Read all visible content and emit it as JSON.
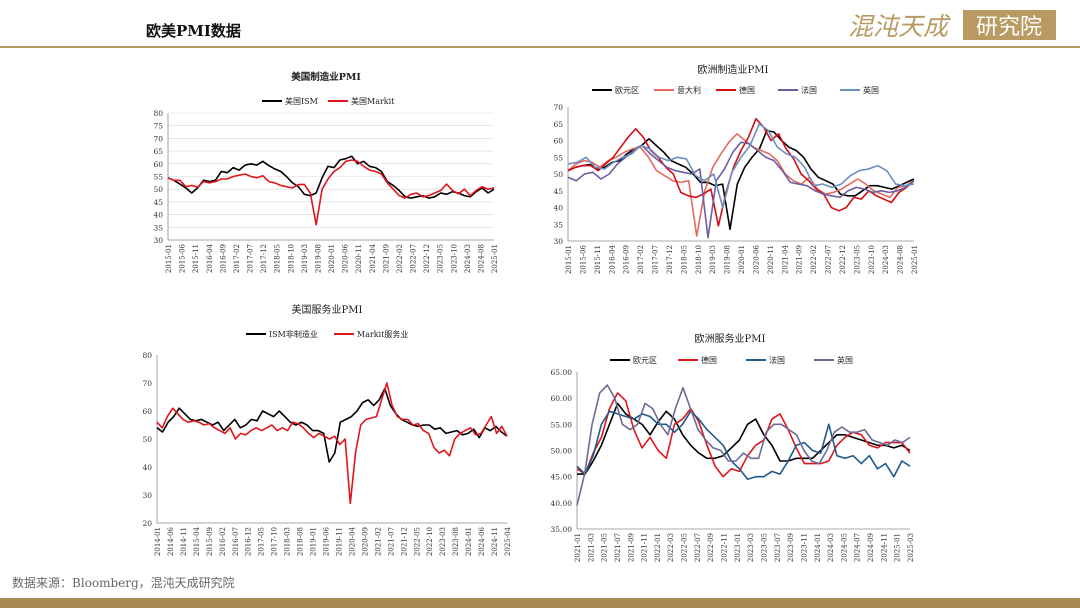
{
  "page": {
    "title": "欧美PMI数据",
    "source": "数据来源：Bloomberg，混沌天成研究院"
  },
  "logo": {
    "text1": "混沌天成",
    "text2": "研究院"
  },
  "colors": {
    "accent": "#b89a62",
    "footer": "#a98a52"
  },
  "chart_data": [
    {
      "type": "line",
      "title": "美国制造业PMI",
      "ylim": [
        30,
        80
      ],
      "yticks": [
        30,
        35,
        40,
        45,
        50,
        55,
        60,
        65,
        70,
        75,
        80
      ],
      "xticks": [
        "2015-01",
        "2015-06",
        "2015-11",
        "2016-04",
        "2016-09",
        "2017-02",
        "2017-07",
        "2017-12",
        "2018-05",
        "2018-10",
        "2019-03",
        "2019-08",
        "2020-01",
        "2020-06",
        "2020-11",
        "2021-04",
        "2021-09",
        "2022-02",
        "2022-07",
        "2022-12",
        "2023-05",
        "2023-10",
        "2024-03",
        "2024-08",
        "2025-01"
      ],
      "series": [
        {
          "name": "美国ISM",
          "color": "#000000",
          "values": [
            54.5,
            53.5,
            52,
            50.5,
            48.5,
            50.5,
            53.5,
            53,
            53.5,
            57,
            56.5,
            58.5,
            57.5,
            59.5,
            60,
            59.5,
            61,
            59.3,
            58,
            57,
            55,
            52.5,
            51,
            48,
            47.5,
            48.5,
            54.5,
            59,
            58.5,
            61.5,
            62,
            63,
            60,
            61,
            59,
            58.5,
            57,
            53,
            51.5,
            49.5,
            47,
            46.5,
            47,
            47.5,
            46.5,
            47,
            48.5,
            48,
            49,
            48.5,
            47.5,
            47,
            49,
            50.5,
            48.5,
            50
          ]
        },
        {
          "name": "美国Markit",
          "color": "#e0161c",
          "values": [
            54.5,
            53.5,
            53.5,
            51,
            51.5,
            50.8,
            53,
            52.5,
            53,
            54,
            54,
            55,
            55.5,
            56,
            55,
            54.5,
            55.3,
            53,
            52.5,
            51.5,
            51,
            50.5,
            51.8,
            51.9,
            48.5,
            36,
            50,
            54,
            57,
            58.5,
            61,
            61.5,
            61,
            59,
            57.5,
            57,
            56,
            52.5,
            50,
            47.5,
            46.5,
            48,
            48.5,
            47,
            47.5,
            48.5,
            49.5,
            52,
            49.5,
            48.2,
            50,
            47.5,
            49.5,
            51,
            50,
            50.5
          ]
        }
      ]
    },
    {
      "type": "line",
      "title": "欧洲制造业PMI",
      "ylim": [
        30,
        70
      ],
      "yticks": [
        30,
        35,
        40,
        45,
        50,
        55,
        60,
        65,
        70
      ],
      "xticks": [
        "2015-01",
        "2015-06",
        "2015-11",
        "2016-04",
        "2016-09",
        "2017-02",
        "2017-07",
        "2017-12",
        "2018-05",
        "2018-10",
        "2019-03",
        "2019-08",
        "2020-01",
        "2020-06",
        "2020-11",
        "2021-04",
        "2021-09",
        "2022-02",
        "2022-07",
        "2022-12",
        "2023-05",
        "2023-10",
        "2024-03",
        "2024-08",
        "2025-01"
      ],
      "series": [
        {
          "name": "欧元区",
          "color": "#000000",
          "values": [
            51,
            52,
            52.5,
            52.8,
            51.5,
            52,
            53.5,
            54,
            56,
            57.5,
            58.5,
            60.5,
            58.5,
            56.5,
            54,
            53,
            52,
            50,
            47.5,
            47.5,
            46.5,
            47,
            33.5,
            47,
            52,
            55,
            57.5,
            63,
            62.5,
            60,
            58,
            57,
            55,
            51.5,
            49,
            48,
            47,
            44,
            43.5,
            43.5,
            45,
            46.5,
            46.5,
            46,
            45.5,
            46.5,
            47.5,
            48.5
          ]
        },
        {
          "name": "意大利",
          "color": "#e26a5e",
          "values": [
            51,
            53,
            54,
            53.5,
            52,
            54,
            55,
            56.5,
            57.5,
            58,
            55,
            51,
            49.5,
            48,
            47.5,
            48,
            31.5,
            45,
            52,
            56,
            59.5,
            62,
            60,
            58,
            57,
            56,
            54,
            50,
            48,
            47,
            49,
            45.5,
            44,
            44.5,
            45.5,
            47,
            48.5,
            47,
            45,
            44,
            43,
            46,
            46.5,
            48
          ]
        },
        {
          "name": "德国",
          "color": "#d40e14",
          "values": [
            51,
            52,
            52.5,
            52.5,
            51,
            53,
            55,
            58,
            61,
            63.5,
            61,
            57,
            55,
            52,
            50,
            44.5,
            43.5,
            43,
            44,
            45.5,
            34.5,
            44.5,
            52,
            57,
            61,
            66.5,
            64,
            60,
            62,
            57.5,
            54.5,
            50,
            48,
            45.5,
            44,
            40,
            39,
            40,
            43,
            42.5,
            45,
            43.5,
            42.5,
            41.5,
            44.5,
            46,
            48
          ]
        },
        {
          "name": "法国",
          "color": "#6e5ca3",
          "values": [
            49,
            48,
            50,
            50.5,
            48.5,
            50,
            53,
            55,
            57,
            58.5,
            56,
            54,
            52,
            51,
            50.5,
            50,
            51.5,
            31,
            48,
            51.5,
            56.5,
            59.5,
            59,
            57,
            55,
            54,
            51,
            47.5,
            47,
            46.5,
            45,
            44,
            43.5,
            43,
            45,
            46,
            45.5,
            44.5,
            45,
            44.5,
            45,
            46,
            48
          ]
        },
        {
          "name": "英国",
          "color": "#6b8fc3",
          "values": [
            53,
            53.5,
            55,
            52,
            51.5,
            53.5,
            55,
            56,
            58.5,
            57.5,
            55,
            54,
            55,
            54.5,
            49.5,
            48,
            50,
            40,
            50.5,
            55,
            58.5,
            65,
            63,
            58,
            56,
            55,
            52,
            46.5,
            47,
            46,
            47,
            49.5,
            51,
            51.5,
            52.5,
            51,
            47,
            46.5,
            47
          ]
        }
      ]
    },
    {
      "type": "line",
      "title": "美国服务业PMI",
      "ylim": [
        20,
        80
      ],
      "yticks": [
        20,
        30,
        40,
        50,
        60,
        70,
        80
      ],
      "xticks": [
        "2014-01",
        "2014-06",
        "2014-11",
        "2015-04",
        "2015-09",
        "2016-02",
        "2016-07",
        "2016-12",
        "2017-05",
        "2017-10",
        "2018-03",
        "2018-08",
        "2019-01",
        "2019-06",
        "2019-11",
        "2020-04",
        "2020-09",
        "2021-02",
        "2021-07",
        "2021-12",
        "2022-05",
        "2022-10",
        "2023-03",
        "2023-08",
        "2024-01",
        "2024-06",
        "2024-11",
        "2025-04"
      ],
      "series": [
        {
          "name": "ISM非制造业",
          "color": "#000000",
          "values": [
            54,
            52.5,
            56,
            58,
            61,
            59,
            57,
            56.5,
            57,
            56,
            55,
            56,
            53,
            55,
            57,
            54,
            55,
            57,
            56.5,
            60,
            59,
            58,
            60,
            58,
            56,
            55,
            56,
            55,
            53,
            53,
            52,
            41.8,
            45,
            56,
            57,
            58,
            60,
            63,
            64,
            62,
            64,
            68,
            62,
            59,
            57,
            56,
            55,
            54.5,
            55,
            55,
            53.5,
            54,
            52,
            52.5,
            53,
            51.5,
            52,
            53.5,
            50.5,
            54,
            53,
            54.5,
            52.5,
            51
          ]
        },
        {
          "name": "Markit服务业",
          "color": "#e0161c",
          "values": [
            56,
            54,
            58,
            61,
            59,
            57,
            56,
            56.5,
            56,
            55,
            55.5,
            54,
            53,
            52,
            54,
            50,
            52,
            51.5,
            53,
            54,
            53,
            54,
            55,
            53,
            54,
            53,
            56,
            55.5,
            54,
            52,
            50.5,
            52,
            51,
            50,
            51,
            48,
            50,
            27,
            45,
            55,
            57,
            57.5,
            58,
            64,
            70,
            62,
            58,
            57,
            57,
            55,
            55.5,
            53,
            52,
            47,
            45,
            46,
            44,
            50,
            52,
            53,
            54,
            51.5,
            52,
            55,
            58,
            52,
            54.5,
            51
          ]
        }
      ]
    },
    {
      "type": "line",
      "title": "欧洲服务业PMI",
      "ylim": [
        35,
        65
      ],
      "yticks": [
        35,
        40,
        45,
        50,
        55,
        60,
        65
      ],
      "ytick_labels": [
        "35.00",
        "40.00",
        "45.00",
        "50.00",
        "55.00",
        "60.00",
        "65.00"
      ],
      "xticks": [
        "2021-01",
        "2021-03",
        "2021-05",
        "2021-07",
        "2021-09",
        "2021-11",
        "2022-01",
        "2022-03",
        "2022-05",
        "2022-07",
        "2022-09",
        "2022-11",
        "2023-01",
        "2023-03",
        "2023-05",
        "2023-07",
        "2023-09",
        "2023-11",
        "2024-01",
        "2024-03",
        "2024-05",
        "2024-07",
        "2024-09",
        "2024-11",
        "2025-01",
        "2025-03"
      ],
      "series": [
        {
          "name": "欧元区",
          "color": "#000000",
          "values": [
            45.5,
            45.5,
            48,
            51,
            55,
            59,
            57,
            56,
            55,
            53,
            55.5,
            57.5,
            56,
            53,
            51,
            49.5,
            48.5,
            48.5,
            49,
            50.5,
            52,
            55,
            56,
            53,
            51,
            48,
            48,
            48.5,
            48.5,
            48.5,
            50,
            51.5,
            53,
            53,
            52.5,
            52,
            51.5,
            51,
            51,
            50.5,
            51,
            50
          ]
        },
        {
          "name": "德国",
          "color": "#e0161c",
          "values": [
            46.5,
            45.5,
            49.5,
            52.5,
            58,
            61,
            59.5,
            54,
            50.5,
            52.5,
            50,
            48.5,
            55,
            56,
            58,
            55.5,
            51,
            47,
            45,
            46.5,
            46,
            49,
            51,
            52,
            56,
            57,
            54,
            50.5,
            47.5,
            47.5,
            47.5,
            48,
            51,
            52.5,
            53.5,
            53,
            51,
            50.5,
            51.5,
            51.5,
            51.5,
            49.5
          ]
        },
        {
          "name": "法国",
          "color": "#1f5a8c",
          "values": [
            47,
            45.5,
            49,
            55,
            57.5,
            57,
            56.5,
            56,
            57,
            56.5,
            55,
            55,
            53.5,
            55,
            57.5,
            56,
            54,
            52.5,
            51,
            48,
            46.5,
            44.5,
            45,
            45,
            46,
            45.5,
            48,
            51,
            51.5,
            50,
            49.5,
            55,
            49,
            48.5,
            49,
            47.5,
            49,
            46.5,
            47.5,
            45,
            48,
            47
          ]
        },
        {
          "name": "英国",
          "color": "#6e6a97",
          "values": [
            39.5,
            45.5,
            55,
            61,
            62.5,
            60,
            55,
            54,
            55,
            59,
            58,
            55,
            53,
            58,
            62,
            58,
            54,
            52,
            50.5,
            50,
            48,
            48,
            49.5,
            48.5,
            48.5,
            53.5,
            55,
            55,
            54,
            53,
            50,
            48,
            47.5,
            50,
            53.5,
            54.5,
            53.5,
            53.5,
            54,
            52,
            51.5,
            51,
            52,
            51.5,
            52.5
          ]
        }
      ]
    }
  ]
}
